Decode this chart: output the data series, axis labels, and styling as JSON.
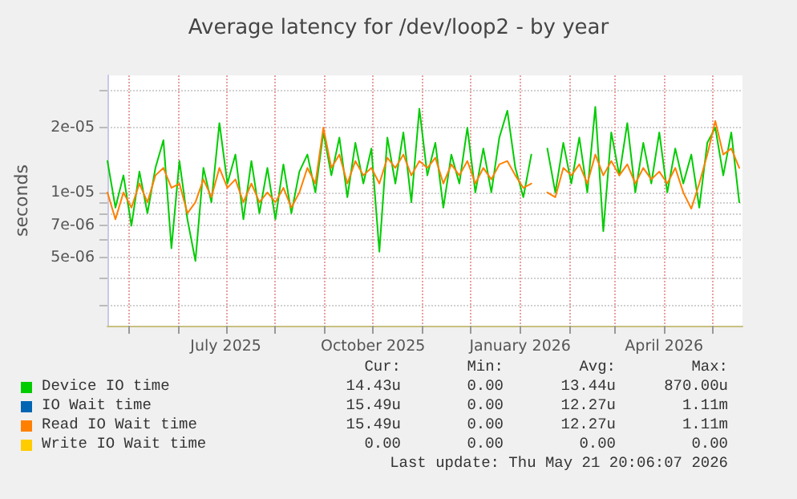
{
  "chart_data": {
    "type": "line",
    "title": "Average latency for /dev/loop2 - by year",
    "ylabel": "seconds",
    "log": "y",
    "grid": true,
    "legend": "bottom",
    "marker": "none",
    "line_style": "solid",
    "xlim": [
      "2025-04-18",
      "2026-05-20"
    ],
    "xticks": [
      {
        "value": "2025-05-01",
        "label": null
      },
      {
        "value": "2025-06-01",
        "label": null
      },
      {
        "value": "2025-07-01",
        "label": "July 2025"
      },
      {
        "value": "2025-08-01",
        "label": null
      },
      {
        "value": "2025-09-01",
        "label": null
      },
      {
        "value": "2025-10-01",
        "label": "October 2025"
      },
      {
        "value": "2025-11-01",
        "label": null
      },
      {
        "value": "2025-12-01",
        "label": null
      },
      {
        "value": "2026-01-01",
        "label": "January 2026"
      },
      {
        "value": "2026-02-01",
        "label": null
      },
      {
        "value": "2026-03-01",
        "label": null
      },
      {
        "value": "2026-04-01",
        "label": "April 2026"
      },
      {
        "value": "2026-05-01",
        "label": null
      }
    ],
    "ylim": [
      2.4e-06,
      3.5e-05
    ],
    "yticks": [
      {
        "value": 3e-06,
        "label": null
      },
      {
        "value": 4e-06,
        "label": null
      },
      {
        "value": 5e-06,
        "label": "5e-06"
      },
      {
        "value": 6e-06,
        "label": null
      },
      {
        "value": 7e-06,
        "label": "7e-06"
      },
      {
        "value": 8e-06,
        "label": null
      },
      {
        "value": 9e-06,
        "label": null
      },
      {
        "value": 1e-05,
        "label": "1e-05"
      },
      {
        "value": 2e-05,
        "label": "2e-05"
      },
      {
        "value": 3e-05,
        "label": null
      }
    ],
    "x": [
      "2025-04-18",
      "2025-04-23",
      "2025-04-28",
      "2025-05-03",
      "2025-05-08",
      "2025-05-13",
      "2025-05-18",
      "2025-05-23",
      "2025-05-28",
      "2025-06-02",
      "2025-06-07",
      "2025-06-12",
      "2025-06-17",
      "2025-06-22",
      "2025-06-27",
      "2025-07-02",
      "2025-07-07",
      "2025-07-12",
      "2025-07-17",
      "2025-07-22",
      "2025-07-27",
      "2025-08-01",
      "2025-08-06",
      "2025-08-11",
      "2025-08-16",
      "2025-08-21",
      "2025-08-26",
      "2025-08-31",
      "2025-09-05",
      "2025-09-10",
      "2025-09-15",
      "2025-09-20",
      "2025-09-25",
      "2025-09-30",
      "2025-10-05",
      "2025-10-10",
      "2025-10-15",
      "2025-10-20",
      "2025-10-25",
      "2025-10-30",
      "2025-11-04",
      "2025-11-09",
      "2025-11-14",
      "2025-11-19",
      "2025-11-24",
      "2025-11-29",
      "2025-12-04",
      "2025-12-09",
      "2025-12-14",
      "2025-12-19",
      "2025-12-24",
      "2025-12-29",
      "2026-01-03",
      "2026-01-08",
      "2026-01-13",
      "2026-01-18",
      "2026-01-23",
      "2026-01-28",
      "2026-02-02",
      "2026-02-07",
      "2026-02-12",
      "2026-02-17",
      "2026-02-22",
      "2026-02-27",
      "2026-03-04",
      "2026-03-09",
      "2026-03-14",
      "2026-03-19",
      "2026-03-24",
      "2026-03-29",
      "2026-04-03",
      "2026-04-08",
      "2026-04-13",
      "2026-04-18",
      "2026-04-23",
      "2026-04-28",
      "2026-05-03",
      "2026-05-08",
      "2026-05-13",
      "2026-05-18"
    ],
    "series": [
      {
        "name": "Device IO time",
        "color": "#00cc00",
        "values": [
          1.4e-05,
          8.5e-06,
          1.2e-05,
          7e-06,
          1.25e-05,
          8e-06,
          1.3e-05,
          1.75e-05,
          5.5e-06,
          1.4e-05,
          7.5e-06,
          4.8e-06,
          1.3e-05,
          9e-06,
          2.1e-05,
          1.1e-05,
          1.5e-05,
          7.5e-06,
          1.4e-05,
          8e-06,
          1.3e-05,
          7.5e-06,
          1.35e-05,
          8e-06,
          1.25e-05,
          1.5e-05,
          1e-05,
          1.9e-05,
          1.2e-05,
          1.8e-05,
          9.5e-06,
          1.7e-05,
          1.1e-05,
          1.6e-05,
          5.3e-06,
          1.8e-05,
          1.1e-05,
          1.9e-05,
          9e-06,
          2.45e-05,
          1.2e-05,
          1.7e-05,
          8.5e-06,
          1.5e-05,
          1.1e-05,
          2e-05,
          1e-05,
          1.6e-05,
          1e-05,
          1.8e-05,
          2.4e-05,
          1.3e-05,
          9.5e-06,
          1.5e-05,
          null,
          1.6e-05,
          1e-05,
          1.7e-05,
          1.1e-05,
          1.8e-05,
          1e-05,
          2.5e-05,
          6.6e-06,
          1.9e-05,
          1.2e-05,
          2.1e-05,
          1e-05,
          1.7e-05,
          1.1e-05,
          1.9e-05,
          1e-05,
          1.6e-05,
          1.1e-05,
          1.5e-05,
          8.5e-06,
          1.7e-05,
          2e-05,
          1.2e-05,
          1.9e-05,
          9e-06
        ]
      },
      {
        "name": "IO Wait time",
        "color": "#0066b3",
        "values": [
          null,
          null,
          null,
          null,
          null,
          null,
          null,
          null,
          null,
          null,
          null,
          null,
          null,
          null,
          null,
          null,
          null,
          null,
          null,
          null,
          null,
          null,
          null,
          null,
          null,
          null,
          null,
          null,
          null,
          null,
          null,
          null,
          null,
          null,
          null,
          null,
          null,
          null,
          null,
          null,
          null,
          null,
          null,
          null,
          null,
          null,
          null,
          null,
          null,
          null,
          null,
          null,
          null,
          null,
          null,
          null,
          null,
          null,
          null,
          null,
          null,
          null,
          null,
          null,
          null,
          null,
          null,
          null,
          null,
          null,
          null,
          null,
          null,
          null,
          null,
          null,
          null,
          null,
          null,
          null
        ]
      },
      {
        "name": "Read IO Wait time",
        "color": "#ff8000",
        "values": [
          1e-05,
          7.5e-06,
          1e-05,
          8.5e-06,
          1.1e-05,
          9e-06,
          1.2e-05,
          1.3e-05,
          1.05e-05,
          1.1e-05,
          8e-06,
          9e-06,
          1.15e-05,
          9.5e-06,
          1.3e-05,
          1.05e-05,
          1.15e-05,
          9e-06,
          1.1e-05,
          9e-06,
          1e-05,
          9e-06,
          1.05e-05,
          8.5e-06,
          1e-05,
          1.3e-05,
          1.1e-05,
          2e-05,
          1.3e-05,
          1.5e-05,
          1.1e-05,
          1.4e-05,
          1.2e-05,
          1.3e-05,
          1.1e-05,
          1.45e-05,
          1.3e-05,
          1.5e-05,
          1.2e-05,
          1.4e-05,
          1.3e-05,
          1.45e-05,
          1.1e-05,
          1.35e-05,
          1.2e-05,
          1.4e-05,
          1.1e-05,
          1.3e-05,
          1.15e-05,
          1.35e-05,
          1.4e-05,
          1.2e-05,
          1.05e-05,
          1.1e-05,
          null,
          1e-05,
          9.5e-06,
          1.3e-05,
          1.2e-05,
          1.35e-05,
          1.1e-05,
          1.5e-05,
          1.2e-05,
          1.4e-05,
          1.2e-05,
          1.35e-05,
          1.1e-05,
          1.3e-05,
          1.15e-05,
          1.25e-05,
          1.1e-05,
          1.3e-05,
          1e-05,
          8.4e-06,
          1.1e-05,
          1.5e-05,
          2.15e-05,
          1.5e-05,
          1.6e-05,
          1.3e-05
        ]
      },
      {
        "name": "Write IO Wait time",
        "color": "#ffcc00",
        "values": [
          null,
          null,
          null,
          null,
          null,
          null,
          null,
          null,
          null,
          null,
          null,
          null,
          null,
          null,
          null,
          null,
          null,
          null,
          null,
          null,
          null,
          null,
          null,
          null,
          null,
          null,
          null,
          null,
          null,
          null,
          null,
          null,
          null,
          null,
          null,
          null,
          null,
          null,
          null,
          null,
          null,
          null,
          null,
          null,
          null,
          null,
          null,
          null,
          null,
          null,
          null,
          null,
          null,
          null,
          null,
          null,
          null,
          null,
          null,
          null,
          null,
          null,
          null,
          null,
          null,
          null,
          null,
          null,
          null,
          null,
          null,
          null,
          null,
          null,
          null,
          null,
          null,
          null,
          null,
          null
        ]
      }
    ],
    "annotations": [
      "Cur:",
      "Min:",
      "Avg:",
      "Max:",
      "14.43u",
      "0.00",
      "13.44u",
      "870.00u",
      "15.49u",
      "0.00",
      "12.27u",
      "1.11m",
      "15.49u",
      "0.00",
      "12.27u",
      "1.11m",
      "0.00",
      "0.00",
      "0.00",
      "0.00",
      "Last update: Thu May 21 20:06:07 2026"
    ]
  }
}
